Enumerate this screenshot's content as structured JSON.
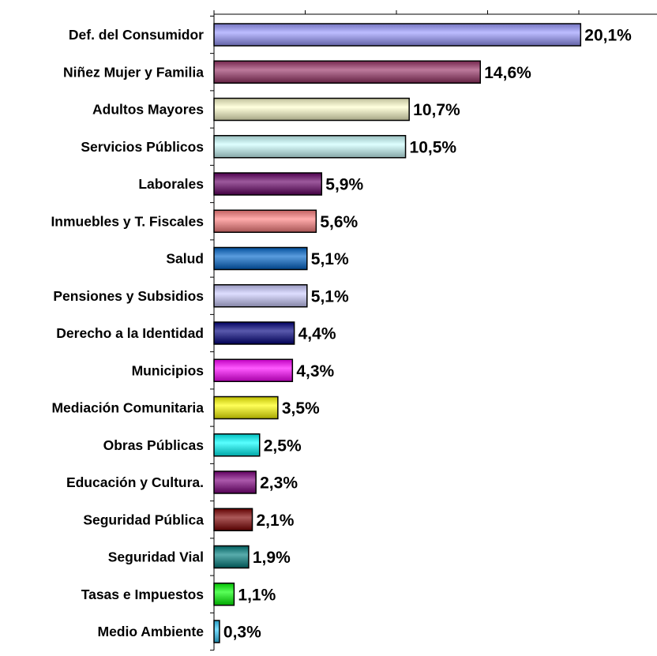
{
  "chart_data": {
    "type": "bar",
    "orientation": "horizontal",
    "categories": [
      "Def. del Consumidor",
      "Niñez Mujer y Familia",
      "Adultos Mayores",
      "Servicios Públicos",
      "Laborales",
      "Inmuebles y T. Fiscales",
      "Salud",
      "Pensiones y Subsidios",
      "Derecho a la Identidad",
      "Municipios",
      "Mediación Comunitaria",
      "Obras Públicas",
      "Educación y Cultura.",
      "Seguridad Pública",
      "Seguridad Vial",
      "Tasas e Impuestos",
      "Medio Ambiente"
    ],
    "values": [
      20.1,
      14.6,
      10.7,
      10.5,
      5.9,
      5.6,
      5.1,
      5.1,
      4.4,
      4.3,
      3.5,
      2.5,
      2.3,
      2.1,
      1.9,
      1.1,
      0.3
    ],
    "value_labels": [
      "20,1%",
      "14,6%",
      "10,7%",
      "10,5%",
      "5,9%",
      "5,6%",
      "5,1%",
      "5,1%",
      "4,4%",
      "4,3%",
      "3,5%",
      "2,5%",
      "2,3%",
      "2,1%",
      "1,9%",
      "1,1%",
      "0,3%"
    ],
    "colors": [
      "#9999ff",
      "#993366",
      "#ffffcc",
      "#ccffff",
      "#660066",
      "#ff8080",
      "#0066cc",
      "#ccccff",
      "#000080",
      "#ff00ff",
      "#ffff00",
      "#00ffff",
      "#800080",
      "#800000",
      "#008080",
      "#00ff00",
      "#33ccff"
    ],
    "title": "",
    "xlabel": "",
    "ylabel": "",
    "xlim": [
      0,
      25
    ],
    "x_tick_step": 5,
    "x_tick_labels_shown": false,
    "grid": false,
    "legend": "none"
  }
}
